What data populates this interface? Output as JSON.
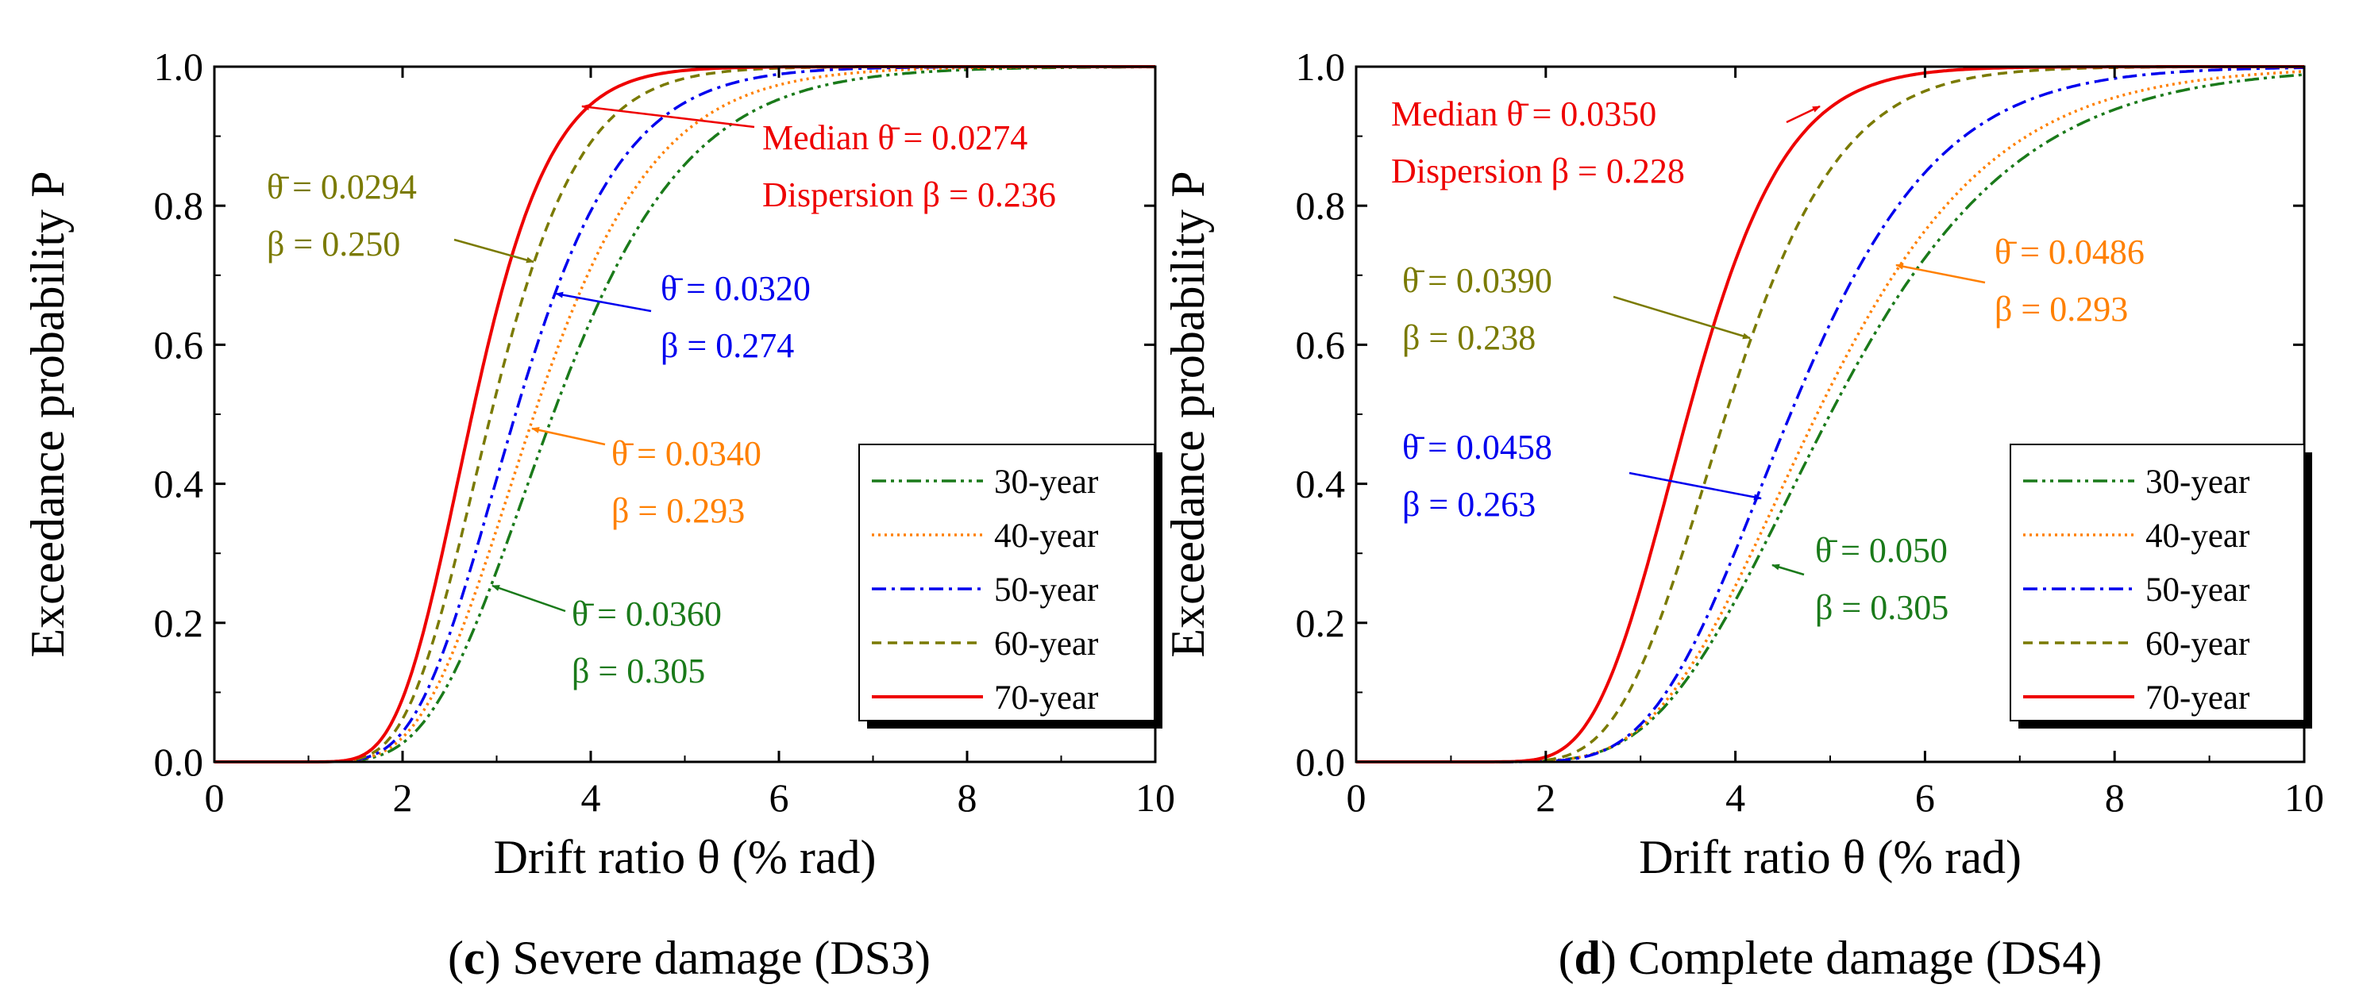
{
  "chart_data": [
    {
      "type": "line",
      "panel": "c",
      "caption_letter": "c",
      "caption_text": " Severe damage (DS3)",
      "xlabel": "Drift ratio θ (% rad)",
      "ylabel": "Exceedance probability P",
      "xlim": [
        0,
        10
      ],
      "ylim": [
        0,
        1.0
      ],
      "xticks": [
        "0",
        "2",
        "4",
        "6",
        "8",
        "10"
      ],
      "yticks": [
        "0.0",
        "0.2",
        "0.4",
        "0.6",
        "0.8",
        "1.0"
      ],
      "grid": false,
      "legend_position": "bottom-right",
      "series": [
        {
          "name": "30-year",
          "median": 3.6,
          "beta": 0.305,
          "color": "#1a7a1a",
          "dash": "dashdotdot"
        },
        {
          "name": "40-year",
          "median": 3.4,
          "beta": 0.293,
          "color": "#ff8000",
          "dash": "dotted"
        },
        {
          "name": "50-year",
          "median": 3.2,
          "beta": 0.274,
          "color": "#0000ee",
          "dash": "dashdot"
        },
        {
          "name": "60-year",
          "median": 2.94,
          "beta": 0.25,
          "color": "#7a7a00",
          "dash": "dashed"
        },
        {
          "name": "70-year",
          "median": 2.74,
          "beta": 0.236,
          "color": "#ee0000",
          "dash": "solid"
        }
      ],
      "annotations": [
        {
          "lines": [
            "Median θ̄ = 0.0274",
            "Dispersion β = 0.236"
          ],
          "color": "#ee0000"
        },
        {
          "lines": [
            "θ̄ = 0.0294",
            "β = 0.250"
          ],
          "color": "#7a7a00"
        },
        {
          "lines": [
            "θ̄ = 0.0320",
            "β = 0.274"
          ],
          "color": "#0000ee"
        },
        {
          "lines": [
            "θ̄ = 0.0340",
            "β = 0.293"
          ],
          "color": "#ff8000"
        },
        {
          "lines": [
            "θ̄ = 0.0360",
            "β = 0.305"
          ],
          "color": "#1a7a1a"
        }
      ]
    },
    {
      "type": "line",
      "panel": "d",
      "caption_letter": "d",
      "caption_text": " Complete damage (DS4)",
      "xlabel": "Drift ratio θ (% rad)",
      "ylabel": "Exceedance probability P",
      "xlim": [
        0,
        10
      ],
      "ylim": [
        0,
        1.0
      ],
      "xticks": [
        "0",
        "2",
        "4",
        "6",
        "8",
        "10"
      ],
      "yticks": [
        "0.0",
        "0.2",
        "0.4",
        "0.6",
        "0.8",
        "1.0"
      ],
      "grid": false,
      "legend_position": "bottom-right",
      "series": [
        {
          "name": "30-year",
          "median": 5.0,
          "beta": 0.305,
          "color": "#1a7a1a",
          "dash": "dashdotdot"
        },
        {
          "name": "40-year",
          "median": 4.86,
          "beta": 0.293,
          "color": "#ff8000",
          "dash": "dotted"
        },
        {
          "name": "50-year",
          "median": 4.58,
          "beta": 0.263,
          "color": "#0000ee",
          "dash": "dashdot"
        },
        {
          "name": "60-year",
          "median": 3.9,
          "beta": 0.238,
          "color": "#7a7a00",
          "dash": "dashed"
        },
        {
          "name": "70-year",
          "median": 3.5,
          "beta": 0.228,
          "color": "#ee0000",
          "dash": "solid"
        }
      ],
      "annotations": [
        {
          "lines": [
            "Median θ̄ = 0.0350",
            "Dispersion β = 0.228"
          ],
          "color": "#ee0000"
        },
        {
          "lines": [
            "θ̄ = 0.0390",
            "β = 0.238"
          ],
          "color": "#7a7a00"
        },
        {
          "lines": [
            "θ̄ = 0.0486",
            "β = 0.293"
          ],
          "color": "#ff8000"
        },
        {
          "lines": [
            "θ̄ = 0.0458",
            "β = 0.263"
          ],
          "color": "#0000ee"
        },
        {
          "lines": [
            "θ̄ = 0.050",
            "β = 0.305"
          ],
          "color": "#1a7a1a"
        }
      ]
    }
  ]
}
